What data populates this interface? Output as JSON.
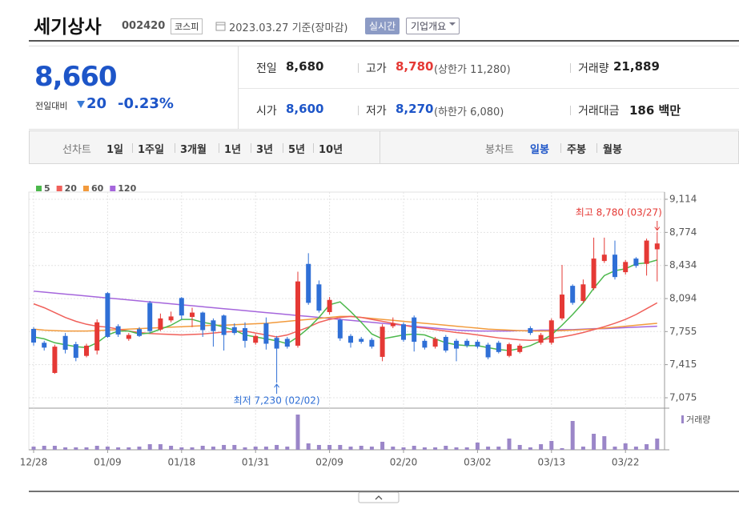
{
  "header": {
    "title": "세기상사",
    "code": "002420",
    "market": "코스피",
    "date": "2023.03.27 기준(장마감)",
    "realtime": "실시간",
    "company": "기업개요"
  },
  "quote": {
    "price": "8,660",
    "change_label": "전일대비",
    "change": "20",
    "change_rate": "-0.23%",
    "rows": [
      [
        {
          "label": "전일",
          "value": "8,680"
        },
        {
          "label": "고가",
          "value": "8,780",
          "note": "(상한가 11,280)"
        },
        {
          "label": "거래량",
          "value": "21,889"
        }
      ],
      [
        {
          "label": "시가",
          "value": "8,600"
        },
        {
          "label": "저가",
          "value": "8,270",
          "note": "(하한가 6,080)"
        },
        {
          "label": "거래대금",
          "value": "186 백만"
        }
      ]
    ]
  },
  "tabs": {
    "line_label": "선차트",
    "line_items": [
      "1일",
      "1주일",
      "3개월",
      "1년",
      "3년",
      "5년",
      "10년"
    ],
    "candle_label": "봉차트",
    "candle_items": [
      "일봉",
      "주봉",
      "월봉"
    ]
  },
  "chart_data": {
    "type": "candlestick",
    "categories": [
      "12/28",
      null,
      null,
      null,
      null,
      null,
      null,
      "01/09",
      null,
      null,
      null,
      null,
      null,
      null,
      "01/18",
      null,
      null,
      null,
      null,
      null,
      null,
      "01/31",
      null,
      null,
      null,
      null,
      null,
      null,
      "02/09",
      null,
      null,
      null,
      null,
      null,
      null,
      "02/20",
      null,
      null,
      null,
      null,
      null,
      null,
      "03/02",
      null,
      null,
      null,
      null,
      null,
      null,
      "03/13",
      null,
      null,
      null,
      null,
      null,
      null,
      "03/22",
      null,
      null,
      null
    ],
    "open": [
      7782,
      7640,
      7330,
      7710,
      7625,
      7505,
      7560,
      8150,
      7810,
      7680,
      7780,
      8050,
      7775,
      7870,
      8100,
      7905,
      7950,
      7870,
      7920,
      7800,
      7790,
      7640,
      7840,
      7690,
      7680,
      7610,
      8450,
      8240,
      7955,
      7875,
      7710,
      7680,
      7670,
      7495,
      7810,
      7830,
      7900,
      7660,
      7600,
      7700,
      7660,
      7660,
      7650,
      7620,
      7640,
      7505,
      7545,
      7790,
      7640,
      7640,
      7890,
      8225,
      8070,
      8200,
      8480,
      8545,
      8365,
      8505,
      8450,
      8600
    ],
    "high": [
      7800,
      7660,
      7620,
      7740,
      7650,
      7630,
      7880,
      8160,
      7830,
      7740,
      7800,
      8070,
      7940,
      7960,
      8110,
      8000,
      7960,
      7890,
      7930,
      7840,
      7850,
      7730,
      7900,
      7710,
      7700,
      8370,
      8560,
      8280,
      8110,
      7890,
      7730,
      7700,
      7690,
      7830,
      7900,
      7850,
      7920,
      7680,
      7700,
      7720,
      7680,
      7680,
      7670,
      7640,
      7660,
      7640,
      7630,
      7810,
      7740,
      7890,
      8440,
      8240,
      8290,
      8720,
      8720,
      8690,
      8490,
      8520,
      8710,
      8780
    ],
    "low": [
      7610,
      7560,
      7320,
      7530,
      7450,
      7490,
      7520,
      7690,
      7700,
      7660,
      7700,
      7740,
      7760,
      7850,
      7880,
      7800,
      7700,
      7600,
      7560,
      7720,
      7590,
      7620,
      7570,
      7230,
      7580,
      7590,
      8030,
      7950,
      7930,
      7660,
      7590,
      7630,
      7580,
      7450,
      7790,
      7650,
      7550,
      7570,
      7580,
      7540,
      7450,
      7590,
      7580,
      7470,
      7530,
      7490,
      7530,
      7720,
      7620,
      7620,
      7870,
      8030,
      8050,
      8180,
      8460,
      8290,
      8340,
      8410,
      8330,
      8270
    ],
    "close": [
      7642,
      7590,
      7600,
      7568,
      7485,
      7610,
      7850,
      7700,
      7725,
      7720,
      7710,
      7760,
      7890,
      7910,
      7920,
      7950,
      7770,
      7760,
      7720,
      7740,
      7660,
      7710,
      7630,
      7580,
      7600,
      8270,
      8050,
      7970,
      8080,
      7685,
      7640,
      7650,
      7600,
      7805,
      7840,
      7670,
      7650,
      7590,
      7680,
      7560,
      7580,
      7610,
      7600,
      7490,
      7545,
      7625,
      7610,
      7740,
      7720,
      7870,
      8135,
      8050,
      8240,
      8505,
      8545,
      8315,
      8470,
      8430,
      8690,
      8660
    ],
    "up_color": "#e53935",
    "down_color": "#2f6fd6",
    "series": [
      {
        "name": "5",
        "color": "#4cb84c",
        "values": [
          7700,
          7680,
          7640,
          7620,
          7600,
          7590,
          7640,
          7720,
          7760,
          7760,
          7730,
          7740,
          7780,
          7820,
          7880,
          7880,
          7850,
          7830,
          7800,
          7770,
          7720,
          7700,
          7680,
          7660,
          7630,
          7700,
          7790,
          7900,
          8030,
          8060,
          7960,
          7850,
          7730,
          7680,
          7700,
          7720,
          7730,
          7720,
          7680,
          7640,
          7620,
          7610,
          7610,
          7590,
          7570,
          7560,
          7580,
          7610,
          7660,
          7720,
          7820,
          7930,
          8050,
          8200,
          8330,
          8380,
          8400,
          8450,
          8460,
          8490
        ]
      },
      {
        "name": "20",
        "color": "#f0605a",
        "values": [
          8040,
          8000,
          7950,
          7900,
          7860,
          7830,
          7810,
          7800,
          7780,
          7760,
          7745,
          7735,
          7730,
          7725,
          7720,
          7725,
          7730,
          7740,
          7750,
          7755,
          7760,
          7740,
          7720,
          7700,
          7720,
          7760,
          7800,
          7850,
          7880,
          7900,
          7910,
          7900,
          7880,
          7860,
          7840,
          7820,
          7800,
          7790,
          7775,
          7760,
          7745,
          7735,
          7720,
          7705,
          7690,
          7680,
          7670,
          7665,
          7670,
          7685,
          7700,
          7720,
          7745,
          7775,
          7805,
          7840,
          7880,
          7930,
          7990,
          8050
        ]
      },
      {
        "name": "60",
        "color": "#f29a3c",
        "values": [
          7780,
          7770,
          7765,
          7760,
          7760,
          7760,
          7765,
          7770,
          7775,
          7780,
          7785,
          7790,
          7795,
          7800,
          7805,
          7810,
          7815,
          7820,
          7820,
          7825,
          7830,
          7835,
          7840,
          7850,
          7860,
          7870,
          7880,
          7890,
          7900,
          7910,
          7910,
          7900,
          7890,
          7880,
          7870,
          7860,
          7850,
          7840,
          7830,
          7820,
          7810,
          7800,
          7790,
          7780,
          7775,
          7770,
          7765,
          7760,
          7760,
          7760,
          7765,
          7770,
          7775,
          7780,
          7790,
          7800,
          7810,
          7820,
          7830,
          7840
        ]
      },
      {
        "name": "120",
        "color": "#a566dc",
        "values": [
          8170,
          8160,
          8150,
          8140,
          8130,
          8120,
          8110,
          8100,
          8090,
          8080,
          8070,
          8060,
          8050,
          8040,
          8030,
          8020,
          8010,
          8000,
          7990,
          7980,
          7970,
          7960,
          7950,
          7940,
          7930,
          7920,
          7910,
          7900,
          7890,
          7880,
          7870,
          7860,
          7850,
          7840,
          7830,
          7820,
          7810,
          7800,
          7790,
          7780,
          7770,
          7765,
          7760,
          7760,
          7760,
          7760,
          7765,
          7765,
          7770,
          7770,
          7775,
          7775,
          7780,
          7785,
          7785,
          7790,
          7795,
          7800,
          7805,
          7810
        ]
      }
    ],
    "volume": {
      "name": "거래량",
      "color": "#9b86c8",
      "values": [
        6200,
        7800,
        7800,
        4700,
        4700,
        4700,
        7800,
        6200,
        4700,
        4700,
        6200,
        10900,
        10900,
        7800,
        4700,
        4700,
        7800,
        6200,
        9400,
        9400,
        4700,
        6200,
        6200,
        9400,
        6200,
        68700,
        12500,
        9400,
        9400,
        9400,
        6200,
        7800,
        6200,
        15600,
        6200,
        4700,
        7800,
        4700,
        4700,
        7800,
        4700,
        4700,
        14100,
        6200,
        6200,
        21900,
        9400,
        4700,
        10900,
        17200,
        3100,
        56200,
        6200,
        31200,
        26500,
        6200,
        12500,
        6200,
        10900,
        21889
      ]
    },
    "ylim": [
      6968,
      9188
    ],
    "yticks": [
      {
        "value": 9114,
        "label": "9,114"
      },
      {
        "value": 8774,
        "label": "8,774"
      },
      {
        "value": 8434,
        "label": "8,434"
      },
      {
        "value": 8094,
        "label": "8,094"
      },
      {
        "value": 7755,
        "label": "7,755"
      },
      {
        "value": 7415,
        "label": "7,415"
      },
      {
        "value": 7075,
        "label": "7,075"
      }
    ],
    "grid": true,
    "legend": "top-left",
    "high_annotation": "최고 8,780 (03/27)",
    "low_annotation": "최저 7,230 (02/02)"
  }
}
